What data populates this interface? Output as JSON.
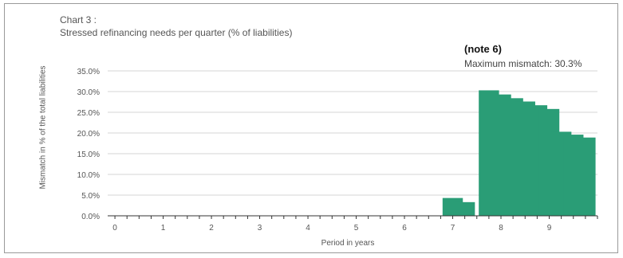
{
  "chart_data": {
    "type": "bar",
    "title": "Chart 3 :",
    "subtitle": "Stressed refinancing needs per quarter  (% of liabilities)",
    "xlabel": "Period in years",
    "ylabel": "Mismatch in % of the total liabilities",
    "x_tick_labels": [
      "0",
      "1",
      "2",
      "3",
      "4",
      "5",
      "6",
      "7",
      "8",
      "9"
    ],
    "y_tick_labels": [
      "0.0%",
      "5.0%",
      "10.0%",
      "15.0%",
      "20.0%",
      "25.0%",
      "30.0%",
      "35.0%"
    ],
    "ylim": [
      0,
      35
    ],
    "xlim": [
      -0.15,
      10.0
    ],
    "grid": "horizontal",
    "bar_color": "#2a9d76",
    "x": [
      7.0,
      7.25,
      7.75,
      8.0,
      8.25,
      8.5,
      8.75,
      9.0,
      9.25,
      9.5,
      9.75
    ],
    "values": [
      4.3,
      3.3,
      30.3,
      29.3,
      28.4,
      27.6,
      26.7,
      25.8,
      20.3,
      19.6,
      18.9
    ],
    "annotation": {
      "heading": "(note 6)",
      "text": "Maximum mismatch: 30.3%"
    }
  }
}
